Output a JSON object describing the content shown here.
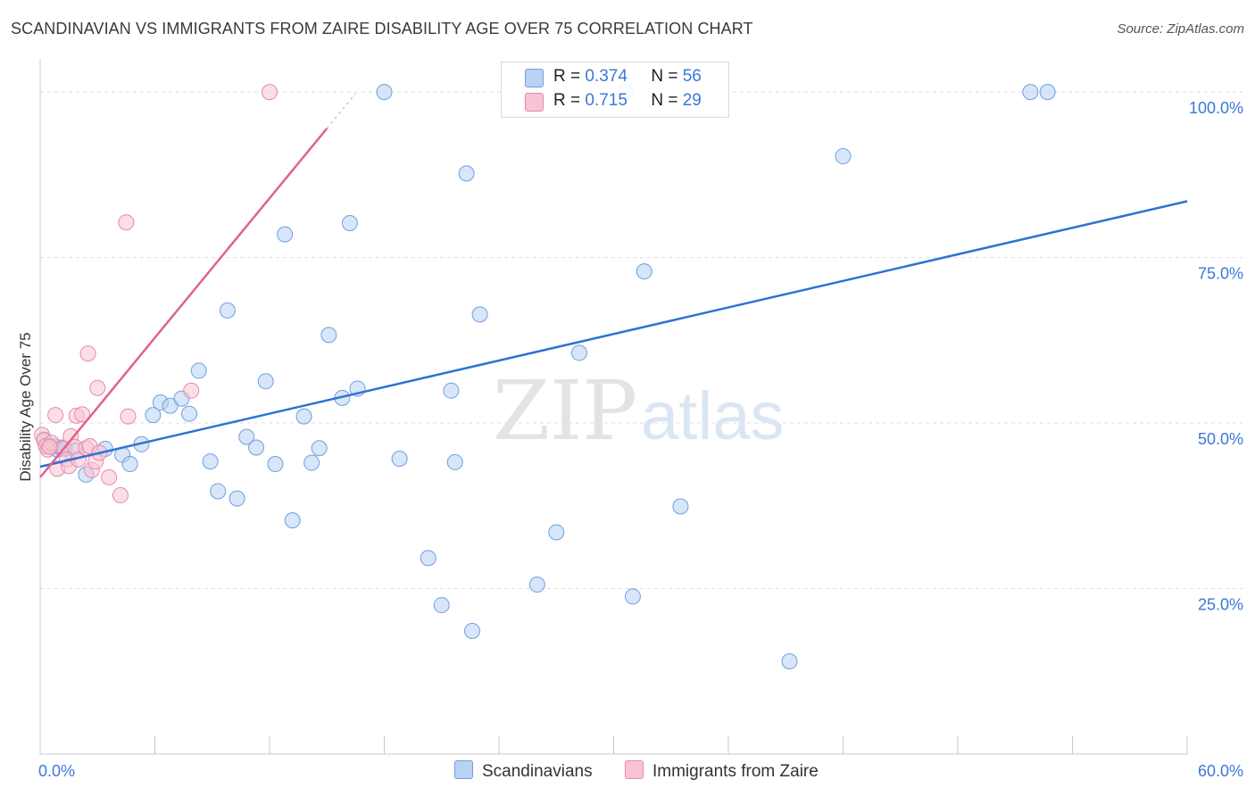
{
  "title": "SCANDINAVIAN VS IMMIGRANTS FROM ZAIRE DISABILITY AGE OVER 75 CORRELATION CHART",
  "source": "Source: ZipAtlas.com",
  "watermark": {
    "zip": "ZIP",
    "atlas": "atlas"
  },
  "colors": {
    "blue_fill": "#b7d2f3",
    "blue_stroke": "#6f9fe0",
    "blue_line": "#2e72d2",
    "pink_fill": "#f8c4d3",
    "pink_stroke": "#e889a7",
    "pink_line": "#e0628c",
    "axis_label": "#3b78d8",
    "grid": "#dddddd"
  },
  "stats_legend": {
    "rows": [
      {
        "r_label": "R =",
        "r_value": "0.374",
        "n_label": "N =",
        "n_value": "56"
      },
      {
        "r_label": "R =",
        "r_value": "0.715",
        "n_label": "N =",
        "n_value": "29"
      }
    ]
  },
  "bottom_legend": [
    "Scandinavians",
    "Immigrants from Zaire"
  ],
  "chart_data": {
    "type": "scatter",
    "title": "SCANDINAVIAN VS IMMIGRANTS FROM ZAIRE DISABILITY AGE OVER 75 CORRELATION CHART",
    "xlabel": "",
    "ylabel": "Disability Age Over 75",
    "xlim": [
      0,
      60
    ],
    "ylim": [
      0,
      105
    ],
    "x_tick_labels": [
      "0.0%",
      "60.0%"
    ],
    "y_ticks": [
      25,
      50,
      75,
      100
    ],
    "y_tick_labels": [
      "25.0%",
      "50.0%",
      "75.0%",
      "100.0%"
    ],
    "grid": true,
    "series": [
      {
        "name": "Scandinavians",
        "r": 0.374,
        "n": 56,
        "trend": [
          [
            0,
            43.4
          ],
          [
            60,
            83.5
          ]
        ],
        "points": [
          [
            0.2,
            47.5
          ],
          [
            0.4,
            46.7
          ],
          [
            0.7,
            46.5
          ],
          [
            0.9,
            46.0
          ],
          [
            1.1,
            46.3
          ],
          [
            1.3,
            46.1
          ],
          [
            1.9,
            45.8
          ],
          [
            2.4,
            42.2
          ],
          [
            3.4,
            46.1
          ],
          [
            4.3,
            45.2
          ],
          [
            4.7,
            43.8
          ],
          [
            5.3,
            46.8
          ],
          [
            5.9,
            51.2
          ],
          [
            6.3,
            53.1
          ],
          [
            6.8,
            52.6
          ],
          [
            7.4,
            53.7
          ],
          [
            7.8,
            51.4
          ],
          [
            8.3,
            57.9
          ],
          [
            8.9,
            44.2
          ],
          [
            9.3,
            39.7
          ],
          [
            9.8,
            67.0
          ],
          [
            10.3,
            38.6
          ],
          [
            10.8,
            47.9
          ],
          [
            11.3,
            46.3
          ],
          [
            11.8,
            56.3
          ],
          [
            12.3,
            43.8
          ],
          [
            12.8,
            78.5
          ],
          [
            13.2,
            35.3
          ],
          [
            13.8,
            51.0
          ],
          [
            14.2,
            44.0
          ],
          [
            14.6,
            46.2
          ],
          [
            15.1,
            63.3
          ],
          [
            15.8,
            53.8
          ],
          [
            16.2,
            80.2
          ],
          [
            16.6,
            55.2
          ],
          [
            18.0,
            100.0
          ],
          [
            18.8,
            44.6
          ],
          [
            20.3,
            29.6
          ],
          [
            21.0,
            22.5
          ],
          [
            21.5,
            54.9
          ],
          [
            21.7,
            44.1
          ],
          [
            22.3,
            87.7
          ],
          [
            22.6,
            18.6
          ],
          [
            23.0,
            66.4
          ],
          [
            25.6,
            100.0
          ],
          [
            26.0,
            25.6
          ],
          [
            27.0,
            33.5
          ],
          [
            28.2,
            60.6
          ],
          [
            30.6,
            100.0
          ],
          [
            31.0,
            23.8
          ],
          [
            31.6,
            72.9
          ],
          [
            33.5,
            37.4
          ],
          [
            39.2,
            14.0
          ],
          [
            42.0,
            90.3
          ],
          [
            51.8,
            100.0
          ],
          [
            52.7,
            100.0
          ]
        ]
      },
      {
        "name": "Immigrants from Zaire",
        "r": 0.715,
        "n": 29,
        "trend": [
          [
            0,
            41.8
          ],
          [
            15,
            94.5
          ]
        ],
        "points": [
          [
            0.1,
            48.2
          ],
          [
            0.2,
            47.4
          ],
          [
            0.3,
            46.5
          ],
          [
            0.4,
            46.0
          ],
          [
            0.6,
            47.0
          ],
          [
            0.8,
            51.2
          ],
          [
            0.9,
            43.1
          ],
          [
            1.2,
            46.2
          ],
          [
            1.4,
            44.5
          ],
          [
            1.5,
            43.5
          ],
          [
            1.6,
            48.0
          ],
          [
            1.8,
            46.4
          ],
          [
            1.9,
            51.1
          ],
          [
            2.0,
            44.5
          ],
          [
            2.2,
            51.3
          ],
          [
            2.4,
            46.2
          ],
          [
            2.6,
            46.5
          ],
          [
            2.7,
            42.9
          ],
          [
            2.9,
            44.2
          ],
          [
            2.5,
            60.5
          ],
          [
            3.0,
            55.3
          ],
          [
            3.1,
            45.5
          ],
          [
            3.6,
            41.8
          ],
          [
            4.2,
            39.1
          ],
          [
            4.5,
            80.3
          ],
          [
            4.6,
            51.0
          ],
          [
            7.9,
            54.9
          ],
          [
            12.0,
            100.0
          ],
          [
            0.5,
            46.4
          ]
        ]
      }
    ]
  }
}
